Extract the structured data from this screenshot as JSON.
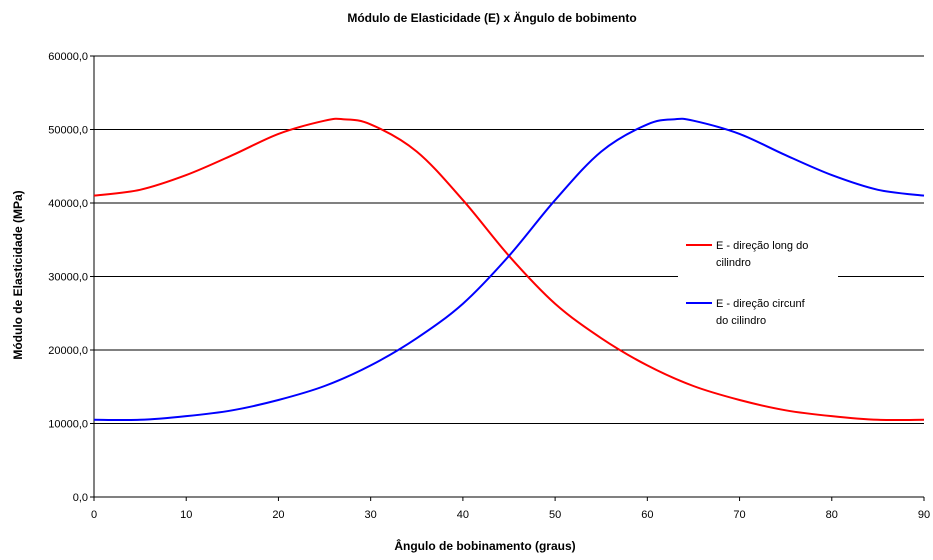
{
  "chart_data": {
    "type": "line",
    "title": "Módulo de Elasticidade (E) x Ängulo de bobimento",
    "xlabel": "Ângulo de bobinamento (graus)",
    "ylabel": "Módulo de Elasticidade (MPa)",
    "xlim": [
      0,
      90
    ],
    "ylim": [
      0,
      60000
    ],
    "x_ticks": [
      "0",
      "10",
      "20",
      "30",
      "40",
      "50",
      "60",
      "70",
      "80",
      "90"
    ],
    "y_ticks": [
      "0,0",
      "10000,0",
      "20000,0",
      "30000,0",
      "40000,0",
      "50000,0",
      "60000,0"
    ],
    "grid": "horizontal",
    "legend_position": "right",
    "series": [
      {
        "name_lines": [
          "E - direção long do",
          "cilindro"
        ],
        "color": "#ff0000",
        "x": [
          0,
          5,
          10,
          15,
          20,
          25,
          27,
          30,
          35,
          40,
          45,
          50,
          55,
          60,
          65,
          70,
          75,
          80,
          85,
          90
        ],
        "y": [
          41000,
          41800,
          43800,
          46500,
          49400,
          51200,
          51400,
          50700,
          47000,
          40400,
          32800,
          26300,
          21600,
          17900,
          15100,
          13200,
          11800,
          11000,
          10500,
          10500
        ]
      },
      {
        "name_lines": [
          "E - direção circunf",
          "do cilindro"
        ],
        "color": "#0000ff",
        "x": [
          0,
          5,
          10,
          15,
          20,
          25,
          30,
          35,
          40,
          45,
          50,
          55,
          60,
          63,
          65,
          70,
          75,
          80,
          85,
          90
        ],
        "y": [
          10500,
          10500,
          11000,
          11800,
          13200,
          15100,
          17900,
          21600,
          26300,
          32800,
          40400,
          47000,
          50700,
          51400,
          51200,
          49400,
          46500,
          43800,
          41800,
          41000
        ]
      }
    ]
  }
}
